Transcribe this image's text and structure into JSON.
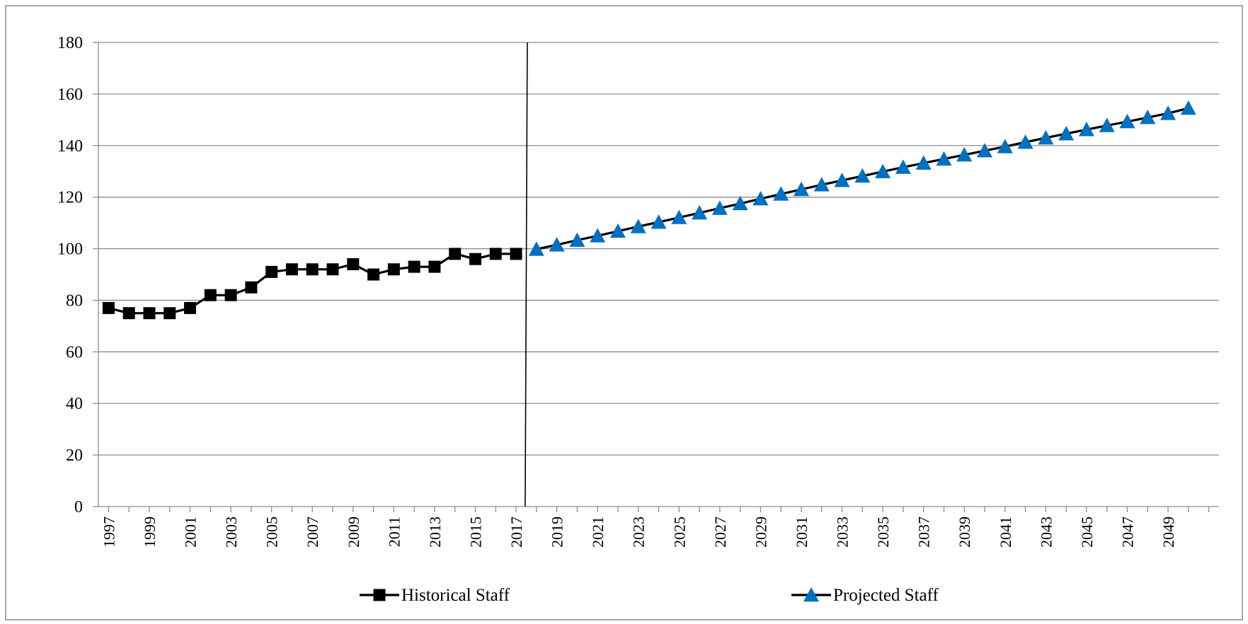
{
  "chart_data": {
    "type": "line",
    "title": "",
    "xlabel": "",
    "ylabel": "",
    "ylim": [
      0,
      180
    ],
    "y_ticks": [
      0,
      20,
      40,
      60,
      80,
      100,
      120,
      140,
      160,
      180
    ],
    "x_range": [
      1997,
      2050
    ],
    "x_tick_labels": [
      1997,
      1999,
      2001,
      2003,
      2005,
      2007,
      2009,
      2011,
      2013,
      2015,
      2017,
      2019,
      2021,
      2023,
      2025,
      2027,
      2029,
      2031,
      2033,
      2035,
      2037,
      2039,
      2041,
      2043,
      2045,
      2047,
      2049
    ],
    "grid": "horizontal",
    "legend_position": "bottom",
    "divider_at": 2017.5,
    "series": [
      {
        "name": "Historical Staff",
        "color": "#000000",
        "marker": "square",
        "x": [
          1997,
          1998,
          1999,
          2000,
          2001,
          2002,
          2003,
          2004,
          2005,
          2006,
          2007,
          2008,
          2009,
          2010,
          2011,
          2012,
          2013,
          2014,
          2015,
          2016,
          2017
        ],
        "values": [
          77,
          75,
          75,
          75,
          77,
          82,
          82,
          85,
          91,
          92,
          92,
          92,
          94,
          90,
          92,
          93,
          93,
          98,
          96,
          98,
          98
        ]
      },
      {
        "name": "Projected Staff",
        "color": "#0070C0",
        "marker": "triangle",
        "x": [
          2018,
          2019,
          2020,
          2021,
          2022,
          2023,
          2024,
          2025,
          2026,
          2027,
          2028,
          2029,
          2030,
          2031,
          2032,
          2033,
          2034,
          2035,
          2036,
          2037,
          2038,
          2039,
          2040,
          2041,
          2042,
          2043,
          2044,
          2045,
          2046,
          2047,
          2048,
          2049,
          2050
        ],
        "values": [
          99.8,
          101.5,
          103.3,
          105.0,
          106.8,
          108.6,
          110.3,
          112.1,
          113.9,
          115.7,
          117.5,
          119.4,
          121.2,
          123.0,
          124.8,
          126.5,
          128.2,
          129.9,
          131.6,
          133.2,
          134.8,
          136.4,
          138.0,
          139.6,
          141.3,
          143.0,
          144.6,
          146.2,
          147.8,
          149.3,
          150.9,
          152.5,
          154.5
        ]
      }
    ]
  }
}
